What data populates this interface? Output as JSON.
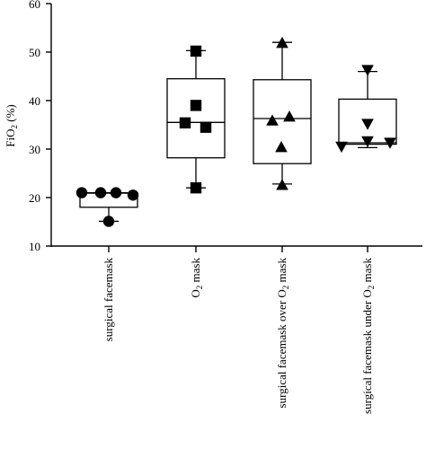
{
  "chart_data": {
    "type": "box",
    "ylabel_main": "FiO",
    "ylabel_sub": "2",
    "ylabel_tail": " (%)",
    "ylim": [
      10,
      60
    ],
    "yticks": [
      "10",
      "20",
      "30",
      "40",
      "50",
      "60"
    ],
    "grid": false,
    "categories": [
      {
        "parts": [
          {
            "t": "surgical facemask"
          }
        ]
      },
      {
        "parts": [
          {
            "t": "O"
          },
          {
            "t": "2",
            "sub": true
          },
          {
            "t": " mask"
          }
        ]
      },
      {
        "parts": [
          {
            "t": "surgical facemask over O"
          },
          {
            "t": "2",
            "sub": true
          },
          {
            "t": " mask"
          }
        ]
      },
      {
        "parts": [
          {
            "t": "surgical facemask under O"
          },
          {
            "t": "2",
            "sub": true
          },
          {
            "t": " mask"
          }
        ]
      }
    ],
    "series": [
      {
        "marker": "circle",
        "box": {
          "min": 15.1,
          "q1": 18.0,
          "median": 20.9,
          "q3": 21.0,
          "max": 21.0
        },
        "points": [
          21.0,
          21.0,
          21.0,
          20.5,
          15.1
        ]
      },
      {
        "marker": "square",
        "box": {
          "min": 22.0,
          "q1": 28.2,
          "median": 35.5,
          "q3": 44.5,
          "max": 50.3
        },
        "points": [
          50.2,
          39.0,
          35.4,
          34.5,
          22.0
        ]
      },
      {
        "marker": "triangle-up",
        "box": {
          "min": 22.8,
          "q1": 27.0,
          "median": 36.3,
          "q3": 44.3,
          "max": 52.0
        },
        "points": [
          51.9,
          36.7,
          35.9,
          30.4,
          22.6
        ]
      },
      {
        "marker": "triangle-down",
        "box": {
          "min": 30.3,
          "q1": 31.0,
          "median": 31.3,
          "q3": 40.3,
          "max": 46.0
        },
        "points": [
          46.3,
          35.2,
          31.6,
          31.3,
          30.5
        ]
      }
    ]
  }
}
